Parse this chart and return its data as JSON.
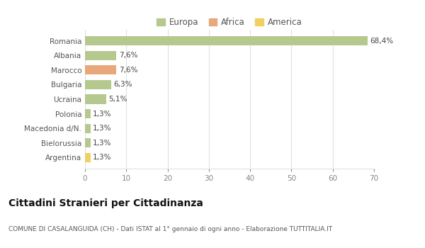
{
  "categories": [
    "Romania",
    "Albania",
    "Marocco",
    "Bulgaria",
    "Ucraina",
    "Polonia",
    "Macedonia d/N.",
    "Bielorussia",
    "Argentina"
  ],
  "values": [
    68.4,
    7.6,
    7.6,
    6.3,
    5.1,
    1.3,
    1.3,
    1.3,
    1.3
  ],
  "labels": [
    "68,4%",
    "7,6%",
    "7,6%",
    "6,3%",
    "5,1%",
    "1,3%",
    "1,3%",
    "1,3%",
    "1,3%"
  ],
  "colors": [
    "#b5c98e",
    "#b5c98e",
    "#e8a87c",
    "#b5c98e",
    "#b5c98e",
    "#b5c98e",
    "#b5c98e",
    "#b5c98e",
    "#f0d060"
  ],
  "legend": [
    {
      "label": "Europa",
      "color": "#b5c98e"
    },
    {
      "label": "Africa",
      "color": "#e8a87c"
    },
    {
      "label": "America",
      "color": "#f0d060"
    }
  ],
  "xlim": [
    0,
    70
  ],
  "xticks": [
    0,
    10,
    20,
    30,
    40,
    50,
    60,
    70
  ],
  "title": "Cittadini Stranieri per Cittadinanza",
  "subtitle": "COMUNE DI CASALANGUIDA (CH) - Dati ISTAT al 1° gennaio di ogni anno - Elaborazione TUTTITALIA.IT",
  "background_color": "#ffffff",
  "grid_color": "#e0e0e0",
  "bar_height": 0.65,
  "label_fontsize": 7.5,
  "ytick_fontsize": 7.5,
  "xtick_fontsize": 7.5,
  "legend_fontsize": 8.5,
  "title_fontsize": 10,
  "subtitle_fontsize": 6.5
}
